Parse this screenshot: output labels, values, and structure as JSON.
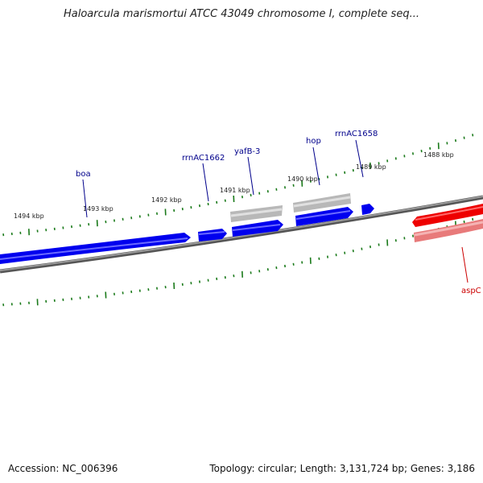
{
  "title": "Haloarcula marismortui ATCC 43049 chromosome I, complete seq...",
  "accession_text": "Accession: NC_006396",
  "summary_text": "Topology: circular; Length: 3,131,724 bp; Genes: 3,186",
  "scale": {
    "unit": "kbp",
    "labels": [
      "1494 kbp",
      "1493 kbp",
      "1492 kbp",
      "1491 kbp",
      "1490 kbp",
      "1489 kbp",
      "1488 kbp"
    ]
  },
  "colors": {
    "forward_gene": "#0000ee",
    "rna_gene": "#b0b0b0",
    "reverse_gene": "#ee0000",
    "reverse_gene_light": "#e07a7a",
    "backbone": "#808080",
    "tick": "#1a7a1a",
    "forward_label": "#00008b",
    "reverse_label": "#cc0000"
  },
  "genes": [
    {
      "name": "boa",
      "strand": "forward",
      "type": "gene"
    },
    {
      "name": "rrnAC1662",
      "strand": "forward",
      "type": "gene"
    },
    {
      "name": "yafB-3",
      "strand": "forward",
      "type": "rna"
    },
    {
      "name": "hop",
      "strand": "forward",
      "type": "gene"
    },
    {
      "name": "rrnAC1658",
      "strand": "forward",
      "type": "gene"
    },
    {
      "name": "aspC",
      "strand": "reverse",
      "type": "gene"
    }
  ]
}
